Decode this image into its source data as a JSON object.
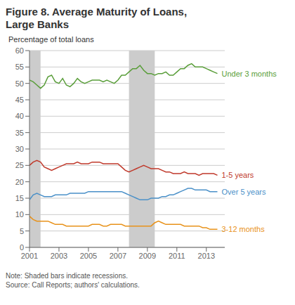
{
  "chart_data": {
    "type": "line",
    "title": "Figure 8. Average Maturity of Loans,\nLarge Banks",
    "y_label": "Percentage of total loans",
    "note": "Note: Shaded bars indicate recessions.\nSource: Call Reports; authors' calculations.",
    "xlim": [
      2001.0,
      2014.25
    ],
    "ylim": [
      0,
      60
    ],
    "yticks": [
      0,
      5,
      10,
      15,
      20,
      25,
      30,
      35,
      40,
      45,
      50,
      55,
      60
    ],
    "xticks": [
      2001,
      2003,
      2005,
      2007,
      2009,
      2011,
      2013
    ],
    "grid": true,
    "recessions": [
      [
        2001.0,
        2001.75
      ],
      [
        2007.75,
        2009.5
      ]
    ],
    "x": [
      2001.0,
      2001.25,
      2001.5,
      2001.75,
      2002.0,
      2002.25,
      2002.5,
      2002.75,
      2003.0,
      2003.25,
      2003.5,
      2003.75,
      2004.0,
      2004.25,
      2004.5,
      2004.75,
      2005.0,
      2005.25,
      2005.5,
      2005.75,
      2006.0,
      2006.25,
      2006.5,
      2006.75,
      2007.0,
      2007.25,
      2007.5,
      2007.75,
      2008.0,
      2008.25,
      2008.5,
      2008.75,
      2009.0,
      2009.25,
      2009.5,
      2009.75,
      2010.0,
      2010.25,
      2010.5,
      2010.75,
      2011.0,
      2011.25,
      2011.5,
      2011.75,
      2012.0,
      2012.25,
      2012.5,
      2012.75,
      2013.0,
      2013.25,
      2013.5,
      2013.75
    ],
    "series": [
      {
        "name": "Under 3 months",
        "color": "#5a9e3a",
        "values": [
          51.0,
          50.5,
          49.5,
          48.5,
          49.5,
          52.0,
          52.5,
          50.5,
          50.0,
          51.5,
          49.5,
          49.0,
          50.0,
          51.5,
          50.5,
          50.0,
          50.5,
          51.0,
          51.0,
          51.0,
          50.5,
          51.0,
          50.5,
          50.0,
          51.0,
          52.5,
          52.5,
          53.5,
          54.5,
          54.5,
          55.5,
          54.0,
          53.0,
          53.0,
          52.5,
          53.0,
          53.0,
          53.5,
          52.5,
          52.5,
          53.5,
          54.5,
          54.5,
          55.5,
          56.0,
          55.0,
          55.0,
          55.0,
          54.5,
          54.0,
          53.5,
          53.0
        ]
      },
      {
        "name": "1-5 years",
        "color": "#c0392b",
        "values": [
          25.0,
          26.0,
          26.5,
          26.0,
          24.5,
          24.0,
          23.5,
          24.0,
          24.5,
          25.0,
          25.5,
          25.5,
          25.5,
          26.0,
          25.5,
          25.5,
          25.5,
          26.0,
          26.0,
          26.0,
          25.5,
          25.5,
          25.5,
          25.5,
          25.5,
          24.5,
          23.5,
          23.0,
          23.5,
          24.0,
          24.5,
          25.0,
          24.5,
          24.0,
          24.0,
          24.0,
          23.5,
          23.0,
          23.0,
          22.5,
          22.5,
          22.5,
          23.0,
          22.5,
          22.5,
          22.5,
          22.0,
          22.5,
          22.5,
          22.5,
          22.5,
          22.0
        ]
      },
      {
        "name": "Over 5 years",
        "color": "#4a90c8",
        "values": [
          14.5,
          16.0,
          16.5,
          16.0,
          15.5,
          15.5,
          15.5,
          16.0,
          16.0,
          16.0,
          16.0,
          16.5,
          16.5,
          16.5,
          16.5,
          16.5,
          17.0,
          17.0,
          17.0,
          17.0,
          17.0,
          17.0,
          17.0,
          17.0,
          17.0,
          17.0,
          16.5,
          16.0,
          15.5,
          15.0,
          14.5,
          14.5,
          14.5,
          15.0,
          15.0,
          15.0,
          15.5,
          15.5,
          16.0,
          16.0,
          16.5,
          17.0,
          17.5,
          18.0,
          18.0,
          17.5,
          17.5,
          17.5,
          17.5,
          17.0,
          17.0,
          17.0
        ]
      },
      {
        "name": "3-12 months",
        "color": "#e8921a",
        "values": [
          9.5,
          8.5,
          8.0,
          8.0,
          8.0,
          8.0,
          7.5,
          7.0,
          7.0,
          7.0,
          6.5,
          6.5,
          6.5,
          6.5,
          6.5,
          6.5,
          6.5,
          7.0,
          7.0,
          7.0,
          6.5,
          6.5,
          7.0,
          7.0,
          7.0,
          7.0,
          6.5,
          6.5,
          6.5,
          6.5,
          6.5,
          6.5,
          6.5,
          6.5,
          7.5,
          8.0,
          7.5,
          7.0,
          7.0,
          7.0,
          7.0,
          7.0,
          6.5,
          6.5,
          6.5,
          6.5,
          6.5,
          6.0,
          6.0,
          5.5,
          5.5,
          5.5
        ]
      }
    ]
  }
}
